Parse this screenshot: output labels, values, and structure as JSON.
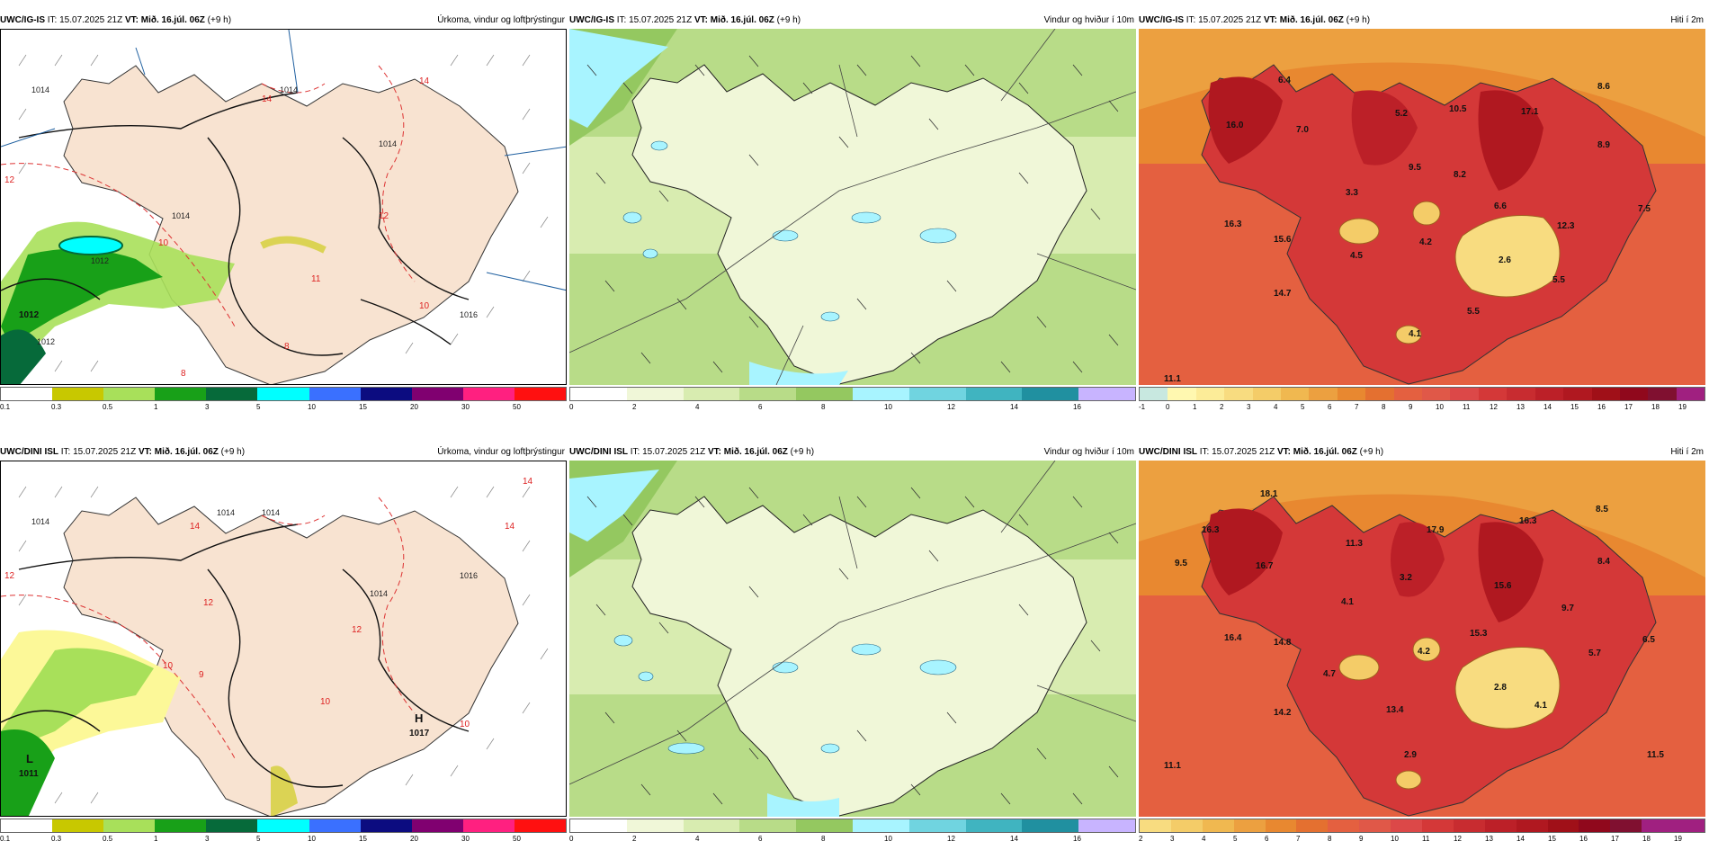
{
  "rows": [
    {
      "model": "UWC/IG-IS",
      "it": "IT: 15.07.2025 21Z",
      "vt": "VT: Mið. 16.júl. 06Z",
      "lead": "(+9 h)",
      "precip": {
        "title": "Úrkoma, vindur og loftþrýstingur",
        "isobars": [
          "1014",
          "1014",
          "1014",
          "1014",
          "1012",
          "1012",
          "1016"
        ],
        "temps": [
          "14",
          "12",
          "12",
          "10",
          "10",
          "11",
          "8",
          "8",
          "14"
        ],
        "pressure_center": {
          "letter": "",
          "value": "1012"
        },
        "colorbar_ticks": [
          "0.1",
          "0.3",
          "0.5",
          "1",
          "3",
          "5",
          "10",
          "15",
          "20",
          "30",
          "50"
        ]
      },
      "wind": {
        "title": "Vindur og hviður í 10m",
        "colorbar_ticks": [
          "0",
          "2",
          "4",
          "6",
          "8",
          "10",
          "12",
          "14",
          "16"
        ]
      },
      "temp": {
        "title": "Hiti í 2m",
        "values": [
          "6.4",
          "16.0",
          "7.0",
          "5.2",
          "10.5",
          "17.1",
          "8.6",
          "8.9",
          "9.5",
          "8.2",
          "3.3",
          "6.6",
          "7.5",
          "16.3",
          "15.6",
          "12.3",
          "4.5",
          "4.2",
          "2.6",
          "5.5",
          "14.7",
          "5.5",
          "4.1",
          "11.1"
        ],
        "colorbar_ticks": [
          "-1",
          "0",
          "1",
          "2",
          "3",
          "4",
          "5",
          "6",
          "7",
          "8",
          "9",
          "10",
          "11",
          "12",
          "13",
          "14",
          "15",
          "16",
          "17",
          "18",
          "19"
        ]
      }
    },
    {
      "model": "UWC/DINI ISL",
      "it": "IT: 15.07.2025 21Z",
      "vt": "VT: Mið. 16.júl. 06Z",
      "lead": "(+9 h)",
      "precip": {
        "title": "Úrkoma, vindur og loftþrýstingur",
        "isobars": [
          "1014",
          "1014",
          "1014",
          "1014",
          "1016"
        ],
        "temps": [
          "14",
          "14",
          "14",
          "12",
          "12",
          "12",
          "10",
          "10",
          "10",
          "9"
        ],
        "pressure_center": {
          "letter": "H",
          "value": "1017"
        },
        "pressure_center2": {
          "letter": "L",
          "value": "1011"
        },
        "colorbar_ticks": [
          "0.1",
          "0.3",
          "0.5",
          "1",
          "3",
          "5",
          "10",
          "15",
          "20",
          "30",
          "50"
        ]
      },
      "wind": {
        "title": "Vindur og hviður í 10m",
        "colorbar_ticks": [
          "0",
          "2",
          "4",
          "6",
          "8",
          "10",
          "12",
          "14",
          "16"
        ]
      },
      "temp": {
        "title": "Hiti í 2m",
        "values": [
          "18.1",
          "16.3",
          "11.3",
          "17.9",
          "16.3",
          "8.5",
          "9.5",
          "16.7",
          "3.2",
          "8.4",
          "4.1",
          "15.6",
          "9.7",
          "16.4",
          "14.8",
          "15.3",
          "4.2",
          "5.7",
          "6.5",
          "4.7",
          "2.8",
          "14.2",
          "13.4",
          "4.1",
          "2.9",
          "11.1",
          "11.5"
        ],
        "colorbar_ticks": [
          "2",
          "3",
          "4",
          "5",
          "6",
          "7",
          "8",
          "9",
          "10",
          "11",
          "12",
          "13",
          "14",
          "15",
          "16",
          "17",
          "18",
          "19"
        ]
      }
    }
  ],
  "colors": {
    "land": "#f8e3d1",
    "precip": [
      "#ffffff",
      "#c8c800",
      "#a8e05a",
      "#18a018",
      "#066a3a",
      "#00ffff",
      "#3a70ff",
      "#0c0c80",
      "#800070",
      "#ff2080",
      "#ff1010"
    ],
    "wind": [
      "#ffffff",
      "#f0f7d8",
      "#d8ecb0",
      "#b8dc88",
      "#94c860",
      "#a8f4ff",
      "#70d4e0",
      "#40b4c0",
      "#2090a0",
      "#c8b4ff"
    ],
    "temp": [
      "#c8e8e0",
      "#fff8b0",
      "#fcec98",
      "#f8dc80",
      "#f4cc68",
      "#f0b850",
      "#eca040",
      "#e88830",
      "#e47030",
      "#e46040",
      "#e05848",
      "#dc4848",
      "#d43838",
      "#c82c30",
      "#bc2028",
      "#b01820",
      "#a01018",
      "#90081c",
      "#801030",
      "#a02080"
    ]
  }
}
